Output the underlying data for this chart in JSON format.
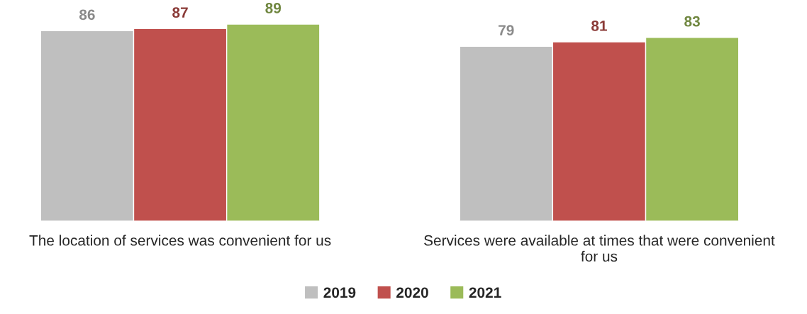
{
  "chart_data": {
    "type": "bar",
    "categories": [
      "The location of services was convenient for us",
      "Services were available at times that were convenient for us"
    ],
    "series": [
      {
        "name": "2019",
        "color": "#bfbfbf",
        "values": [
          86,
          79
        ]
      },
      {
        "name": "2020",
        "color": "#c0504d",
        "values": [
          87,
          81
        ]
      },
      {
        "name": "2021",
        "color": "#9bbb59",
        "values": [
          89,
          83
        ]
      }
    ],
    "data_labels": true,
    "legend": "bottom",
    "grid": false,
    "tick_labels": "x"
  }
}
